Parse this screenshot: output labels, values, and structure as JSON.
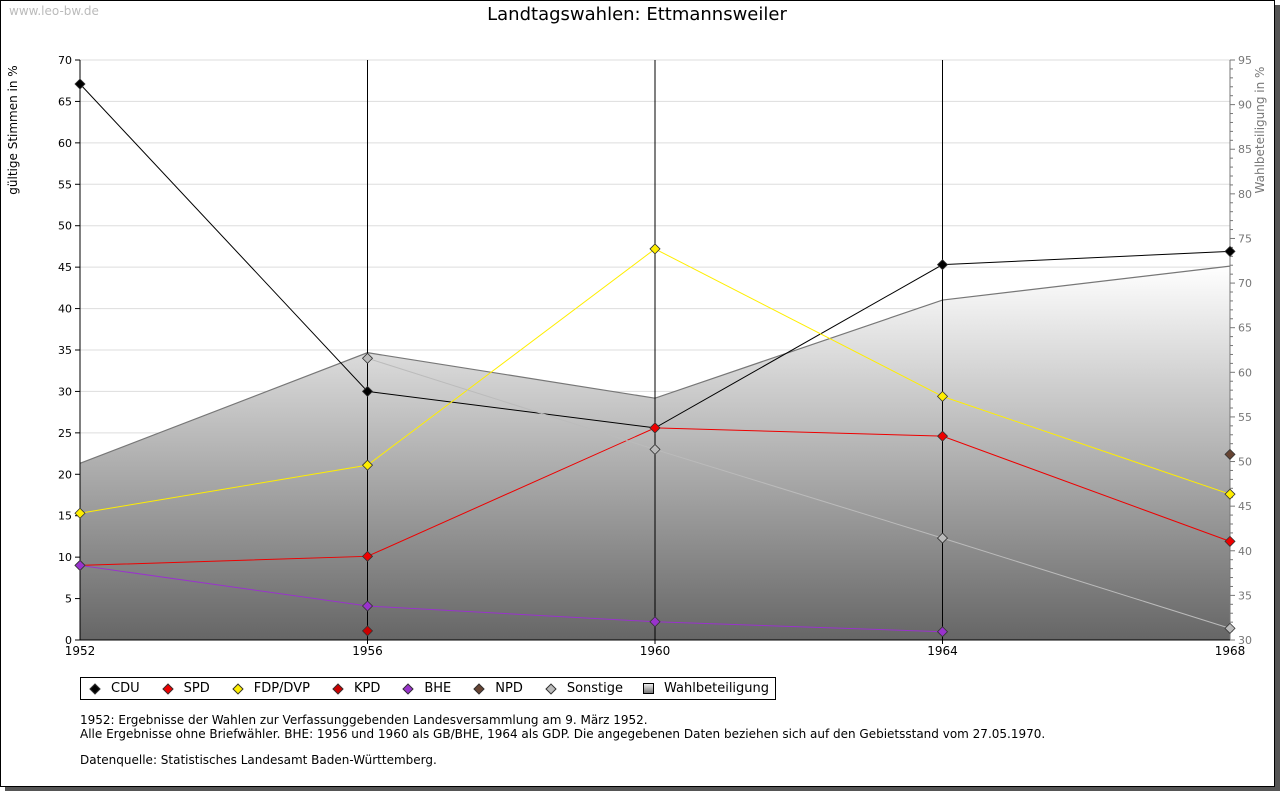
{
  "watermark": "www.leo-bw.de",
  "chart_data": {
    "type": "line",
    "title": "Landtagswahlen: Ettmannsweiler",
    "ylabel": "gültige Stimmen in %",
    "y2label": "Wahlbeteiligung in %",
    "x": [
      1952,
      1956,
      1960,
      1964,
      1968
    ],
    "xticks": [
      "1952",
      "1956",
      "1960",
      "1964",
      "1968"
    ],
    "ylim": [
      0,
      70
    ],
    "yticks": [
      "0",
      "5",
      "10",
      "15",
      "20",
      "25",
      "30",
      "35",
      "40",
      "45",
      "50",
      "55",
      "60",
      "65",
      "70"
    ],
    "y2lim": [
      30,
      95
    ],
    "y2ticks": [
      "30",
      "35",
      "40",
      "45",
      "50",
      "55",
      "60",
      "65",
      "70",
      "75",
      "80",
      "85",
      "90",
      "95"
    ],
    "grid": true,
    "legend_position": "bottom",
    "series": [
      {
        "name": "CDU",
        "color": "#000000",
        "values": [
          67.1,
          30.0,
          25.6,
          45.3,
          46.9
        ]
      },
      {
        "name": "SPD",
        "color": "#ee0000",
        "values": [
          9.0,
          10.1,
          25.6,
          24.6,
          11.9
        ]
      },
      {
        "name": "FDP/DVP",
        "color": "#ffee00",
        "values": [
          15.3,
          21.1,
          47.2,
          29.4,
          17.6
        ]
      },
      {
        "name": "KPD",
        "color": "#cc0000",
        "values": [
          null,
          1.1,
          null,
          null,
          null
        ]
      },
      {
        "name": "BHE",
        "color": "#9933cc",
        "values": [
          9.0,
          4.1,
          2.2,
          1.0,
          null
        ]
      },
      {
        "name": "NPD",
        "color": "#664433",
        "values": [
          null,
          null,
          null,
          null,
          22.4
        ]
      },
      {
        "name": "Sonstige",
        "color": "#bbbbbb",
        "values": [
          null,
          34.0,
          23.0,
          12.3,
          1.4
        ]
      }
    ],
    "area": {
      "name": "Wahlbeteiligung",
      "axis": "right",
      "values": [
        49.8,
        62.2,
        57.1,
        68.1,
        71.9
      ]
    }
  },
  "notes": {
    "line1": "1952: Ergebnisse der Wahlen zur Verfassunggebenden Landesversammlung am 9. März 1952.",
    "line2": "Alle Ergebnisse ohne Briefwähler. BHE: 1956 und 1960 als GB/BHE, 1964 als GDP. Die angegebenen Daten beziehen sich auf den Gebietsstand vom 27.05.1970.",
    "source": "Datenquelle: Statistisches Landesamt Baden-Württemberg."
  }
}
